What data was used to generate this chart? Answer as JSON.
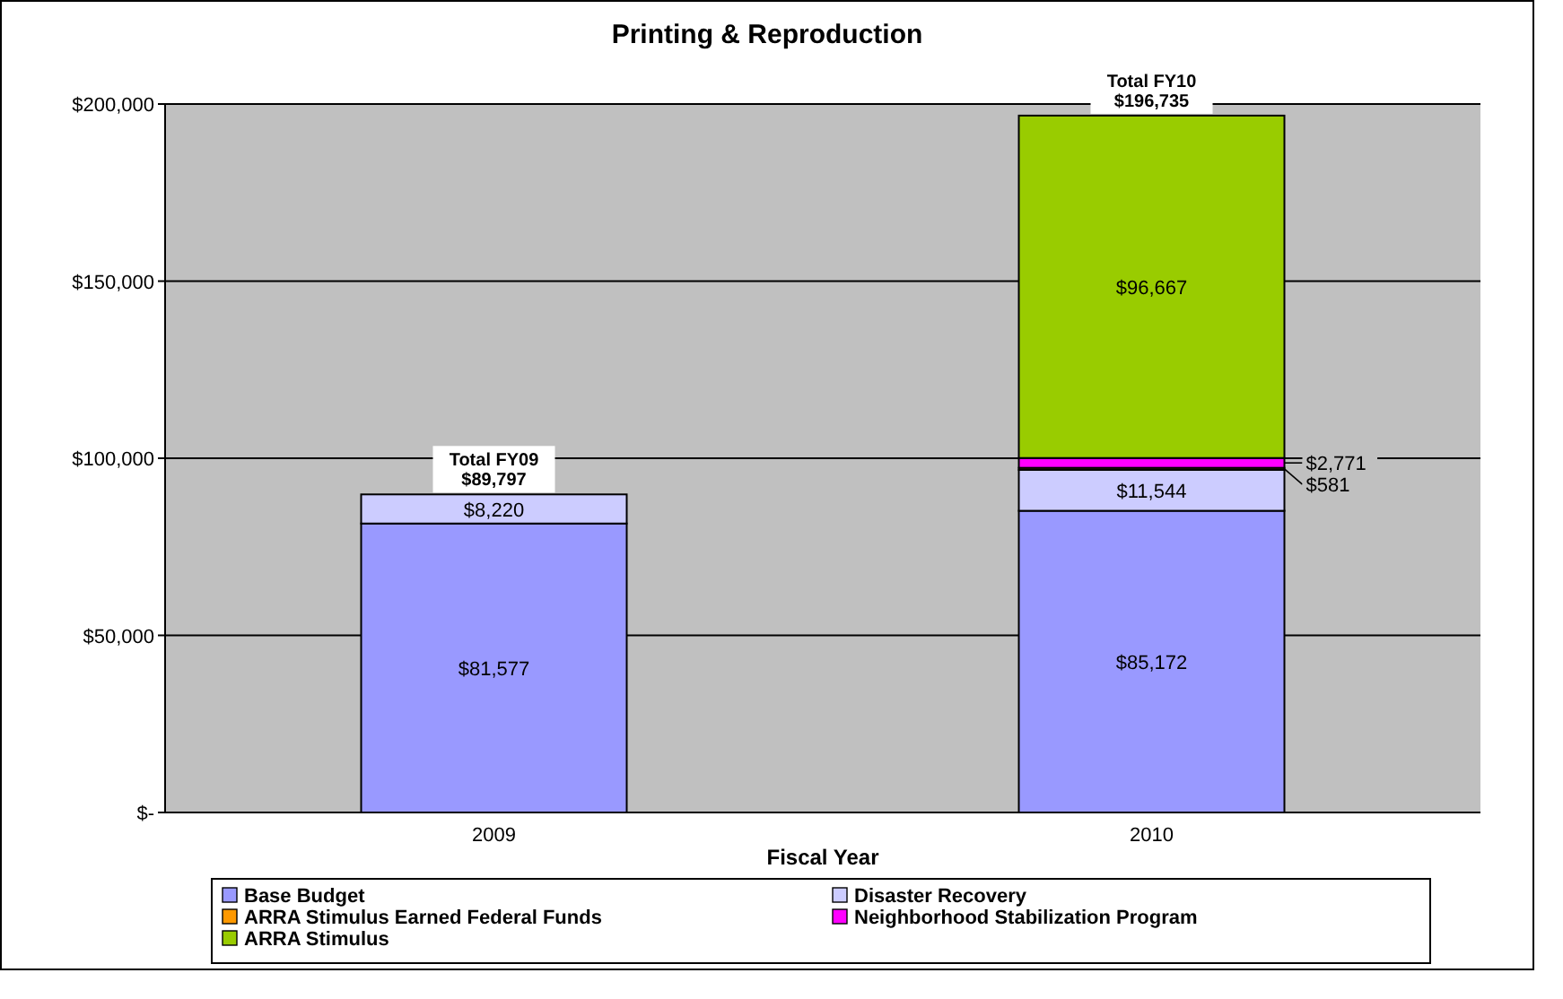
{
  "chart_data": {
    "type": "bar",
    "title": "Printing & Reproduction",
    "xlabel": "Fiscal Year",
    "categories": [
      "2009",
      "2010"
    ],
    "stacked": true,
    "series": [
      {
        "name": "Base Budget",
        "color": "#9999ff",
        "values": [
          81577,
          85172
        ],
        "value_labels": [
          "$81,577",
          "$85,172"
        ]
      },
      {
        "name": "Disaster Recovery",
        "color": "#ccccff",
        "values": [
          8220,
          11544
        ],
        "value_labels": [
          "$8,220",
          "$11,544"
        ]
      },
      {
        "name": "ARRA Stimulus Earned Federal Funds",
        "color": "#ff9900",
        "values": [
          null,
          581
        ],
        "value_labels": [
          null,
          "$581"
        ]
      },
      {
        "name": "Neighborhood Stabilization Program",
        "color": "#ff00ff",
        "values": [
          null,
          2771
        ],
        "value_labels": [
          null,
          "$2,771"
        ]
      },
      {
        "name": "ARRA Stimulus",
        "color": "#99cc00",
        "values": [
          null,
          96667
        ],
        "value_labels": [
          null,
          "$96,667"
        ]
      }
    ],
    "totals": [
      "Total FY09\n$89,797",
      "Total FY10\n$196,735"
    ],
    "ylim": [
      0,
      200000
    ],
    "yticks": [
      {
        "value": 0,
        "label": "$-"
      },
      {
        "value": 50000,
        "label": "$50,000"
      },
      {
        "value": 100000,
        "label": "$100,000"
      },
      {
        "value": 150000,
        "label": "$150,000"
      },
      {
        "value": 200000,
        "label": "$200,000"
      }
    ],
    "grid": "y",
    "legend": "bottom"
  }
}
